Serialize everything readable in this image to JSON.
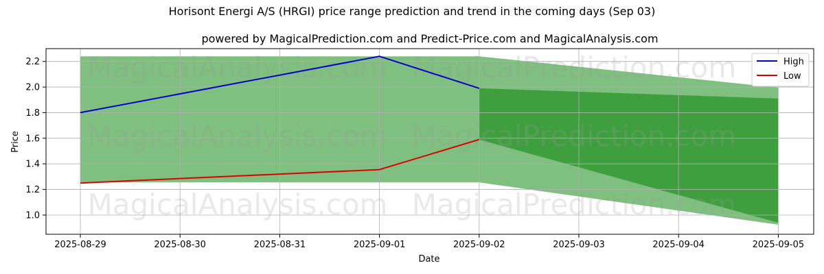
{
  "chart_data": {
    "type": "area",
    "title": "Horisont Energi A/S (HRGI) price range prediction and trend in the coming days (Sep 03)",
    "subtitle": "powered by MagicalPrediction.com and Predict-Price.com and MagicalAnalysis.com",
    "xlabel": "Date",
    "ylabel": "Price",
    "x": [
      "2025-08-29",
      "2025-08-30",
      "2025-08-31",
      "2025-09-01",
      "2025-09-02",
      "2025-09-03",
      "2025-09-04",
      "2025-09-05"
    ],
    "ylim": [
      0.85,
      2.3
    ],
    "yticks": [
      "1.0",
      "1.2",
      "1.4",
      "1.6",
      "1.8",
      "2.0",
      "2.2"
    ],
    "grid": true,
    "legend_position": "top-right",
    "series": [
      {
        "name": "High",
        "color": "#0000cc",
        "points": [
          [
            "2025-08-29",
            1.8
          ],
          [
            "2025-09-01",
            2.24
          ],
          [
            "2025-09-02",
            1.99
          ]
        ]
      },
      {
        "name": "Low",
        "color": "#dd0000",
        "points": [
          [
            "2025-08-29",
            1.25
          ],
          [
            "2025-09-01",
            1.355
          ],
          [
            "2025-09-02",
            1.59
          ]
        ]
      }
    ],
    "bands": [
      {
        "color": "#008000",
        "opacity": 0.5,
        "upper": [
          [
            "2025-08-29",
            2.24
          ],
          [
            "2025-09-02",
            2.24
          ],
          [
            "2025-09-05",
            1.995
          ]
        ],
        "lower": [
          [
            "2025-08-29",
            1.255
          ],
          [
            "2025-09-02",
            1.255
          ],
          [
            "2025-09-05",
            0.925
          ]
        ]
      },
      {
        "color": "#008000",
        "opacity": 0.5,
        "upper": [
          [
            "2025-09-02",
            1.99
          ],
          [
            "2025-09-05",
            1.91
          ]
        ],
        "lower": [
          [
            "2025-09-02",
            1.59
          ],
          [
            "2025-09-05",
            0.94
          ]
        ]
      }
    ],
    "watermarks": [
      "MagicalAnalysis.com",
      "MagicalPrediction.com"
    ]
  }
}
